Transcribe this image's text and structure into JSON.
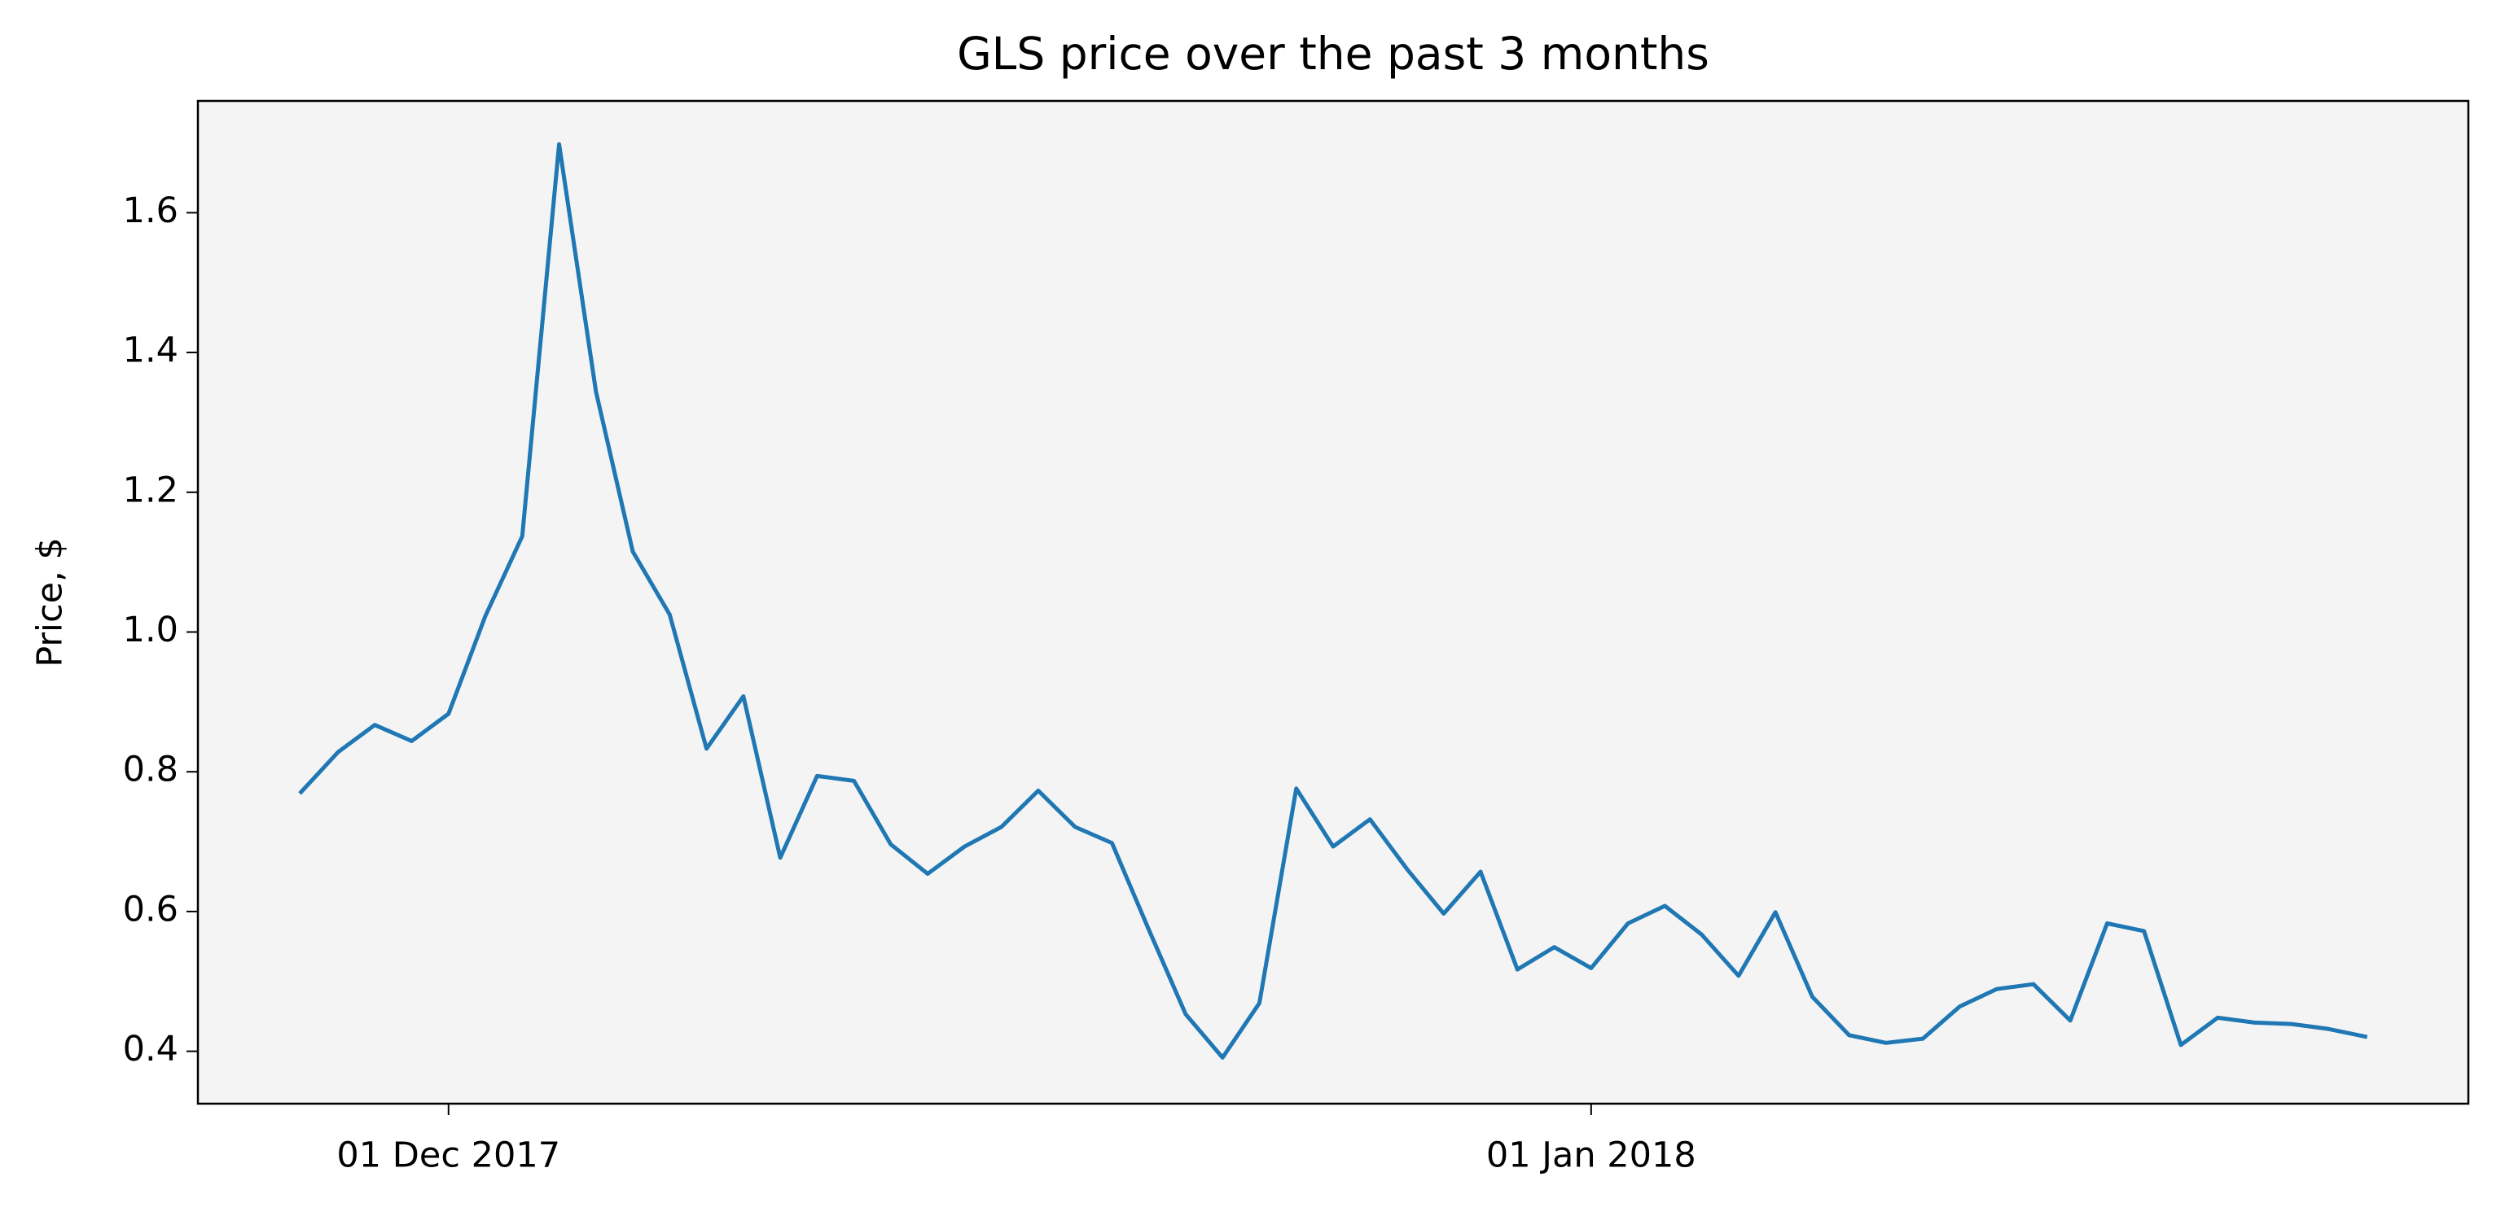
{
  "chart_data": {
    "type": "line",
    "title": "GLS price over the past 3 months",
    "y_label": "Price, $",
    "color": "#1f77b4",
    "facecolor": "#f4f4f4",
    "grid": false,
    "x": [
      "2017-11-27",
      "2017-11-28",
      "2017-11-29",
      "2017-11-30",
      "2017-12-01",
      "2017-12-02",
      "2017-12-03",
      "2017-12-04",
      "2017-12-05",
      "2017-12-06",
      "2017-12-07",
      "2017-12-08",
      "2017-12-09",
      "2017-12-10",
      "2017-12-11",
      "2017-12-12",
      "2017-12-13",
      "2017-12-14",
      "2017-12-15",
      "2017-12-16",
      "2017-12-17",
      "2017-12-18",
      "2017-12-19",
      "2017-12-20",
      "2017-12-21",
      "2017-12-22",
      "2017-12-23",
      "2017-12-24",
      "2017-12-25",
      "2017-12-26",
      "2017-12-27",
      "2017-12-28",
      "2017-12-29",
      "2017-12-30",
      "2017-12-31",
      "2018-01-01",
      "2018-01-02",
      "2018-01-03",
      "2018-01-04",
      "2018-01-05",
      "2018-01-06",
      "2018-01-07",
      "2018-01-08",
      "2018-01-09",
      "2018-01-10",
      "2018-01-11",
      "2018-01-12",
      "2018-01-13",
      "2018-01-14",
      "2018-01-15",
      "2018-01-16",
      "2018-01-17",
      "2018-01-18",
      "2018-01-19",
      "2018-01-20",
      "2018-01-21",
      "2018-01-22"
    ],
    "values": [
      0.771,
      0.828,
      0.867,
      0.844,
      0.883,
      1.023,
      1.137,
      1.698,
      1.344,
      1.115,
      1.025,
      0.833,
      0.908,
      0.677,
      0.794,
      0.787,
      0.696,
      0.654,
      0.693,
      0.721,
      0.773,
      0.721,
      0.698,
      0.574,
      0.453,
      0.391,
      0.469,
      0.776,
      0.693,
      0.732,
      0.661,
      0.597,
      0.657,
      0.517,
      0.549,
      0.519,
      0.583,
      0.608,
      0.567,
      0.508,
      0.599,
      0.478,
      0.423,
      0.412,
      0.418,
      0.464,
      0.489,
      0.496,
      0.444,
      0.583,
      0.572,
      0.409,
      0.448,
      0.441,
      0.439,
      0.432,
      0.421
    ],
    "xlim": [
      "2017-11-24T04:48:00Z",
      "2018-01-24T19:12:00Z"
    ],
    "xticks": [
      {
        "value": "2017-12-01",
        "label": "01 Dec 2017"
      },
      {
        "value": "2018-01-01",
        "label": "01 Jan 2018"
      }
    ],
    "ylim": [
      0.325,
      1.76
    ],
    "yticks": [
      0.4,
      0.6,
      0.8,
      {
        "value": 1,
        "label": "1.0"
      },
      1.2,
      1.4,
      1.6
    ]
  }
}
